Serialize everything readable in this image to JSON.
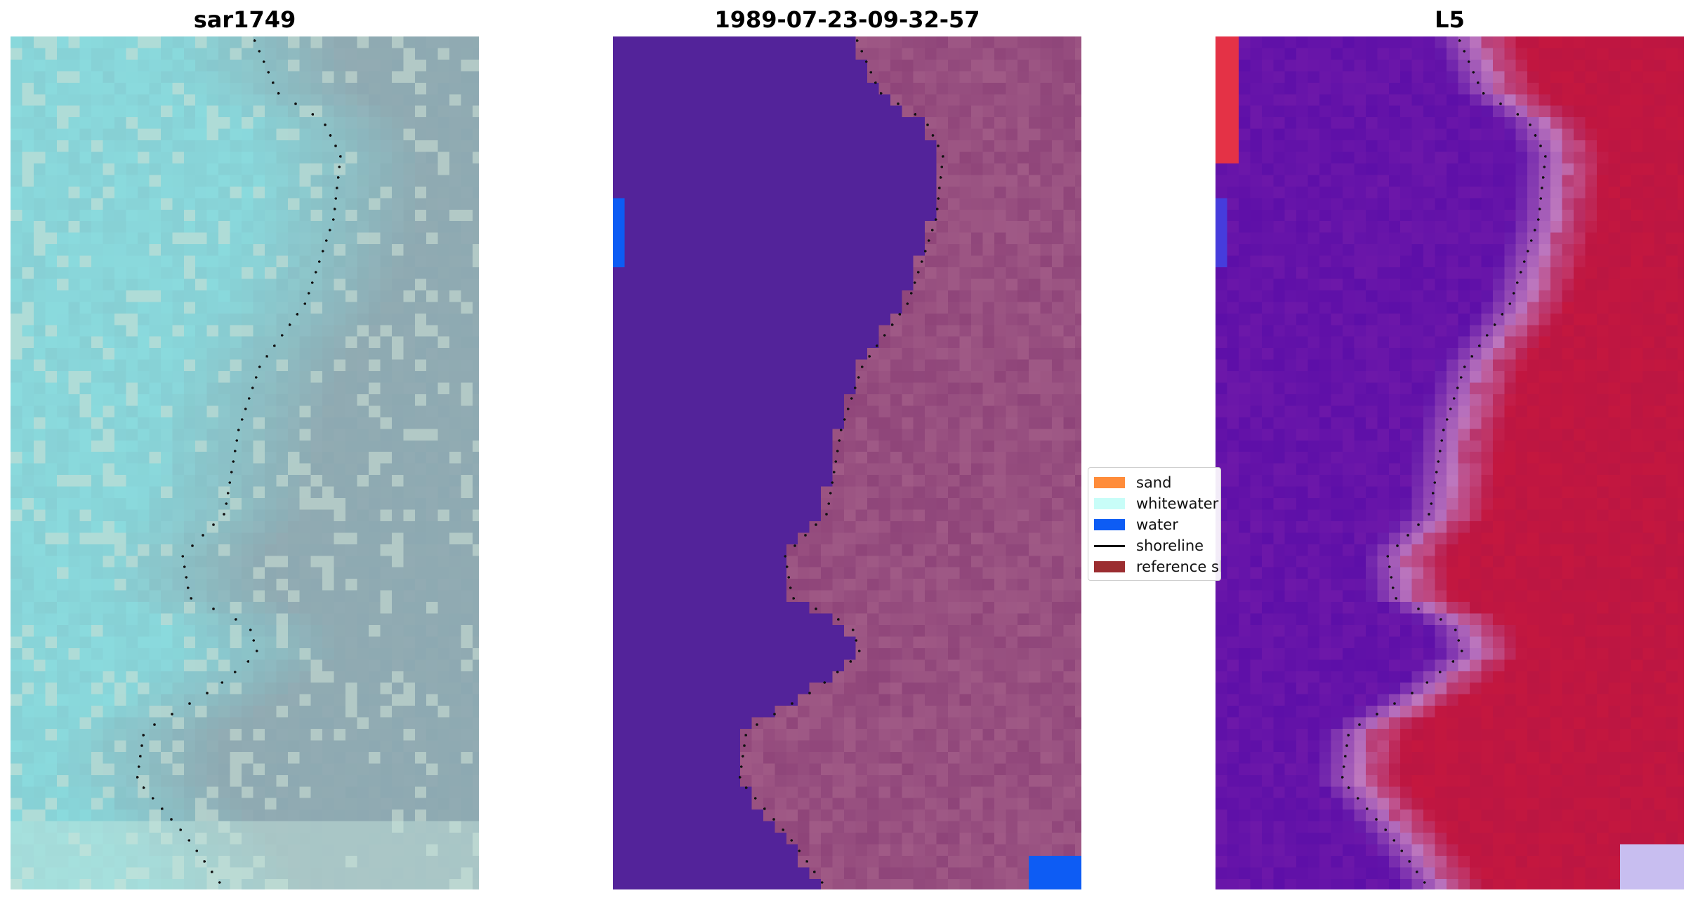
{
  "panels": [
    {
      "title": "sar1749",
      "render": "false-color image",
      "palette": "teal-gray-cream"
    },
    {
      "title": "1989-07-23-09-32-57",
      "render": "classified overlay",
      "palette": "purple-water-pink-land"
    },
    {
      "title": "L5",
      "render": "water-index map",
      "palette": "blue-purple-red"
    }
  ],
  "legend": {
    "entries": [
      {
        "label": "sand",
        "color": "#ff8c3a",
        "kind": "patch"
      },
      {
        "label": "whitewater",
        "color": "#c8fdf8",
        "kind": "patch"
      },
      {
        "label": "water",
        "color": "#0d5cf4",
        "kind": "patch"
      },
      {
        "label": "shoreline",
        "color": "#000000",
        "kind": "line"
      },
      {
        "label": "reference shoreline",
        "color": "#9b2d30",
        "kind": "patch"
      }
    ]
  },
  "colors": {
    "water_class": "#53239a",
    "land_class": "#a05a86",
    "land_dark": "#8a3f76",
    "rgb_water": "#88d2d6",
    "rgb_land": "#8faab2",
    "index_water": "#5d0fa8",
    "index_land": "#c4173f",
    "shoreline": "#111111"
  }
}
